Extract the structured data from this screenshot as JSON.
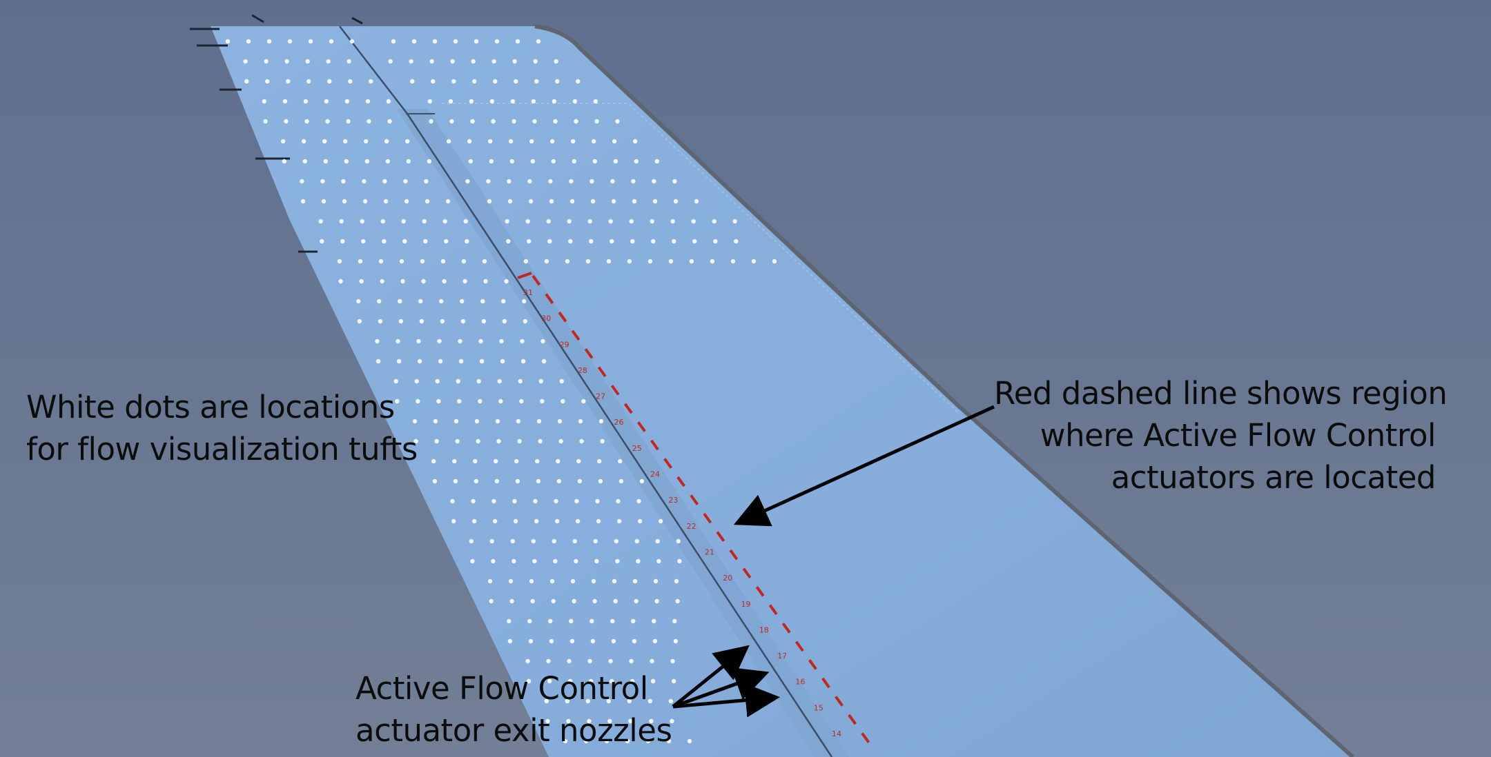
{
  "annotations": {
    "white_dots": [
      "White dots are locations",
      "for flow visualization tufts"
    ],
    "red_dashed": [
      "Red dashed line shows region",
      "where Active Flow Control",
      "actuators are located"
    ],
    "nozzles": [
      "Active Flow Control",
      "actuator exit nozzles"
    ]
  },
  "station_numbers": [
    "31",
    "30",
    "29",
    "28",
    "27",
    "26",
    "25",
    "24",
    "23",
    "22",
    "21",
    "20",
    "19",
    "18",
    "17",
    "16",
    "15",
    "14"
  ],
  "colors": {
    "sky_top": "#5f6f8e",
    "sky_bottom": "#717f97",
    "tail_skin": "#86aedb",
    "tail_skin_dark": "#7ea5d2",
    "actuator_dashes": "#c3261e",
    "arrows": "#000000",
    "dots": "#ffffff"
  }
}
